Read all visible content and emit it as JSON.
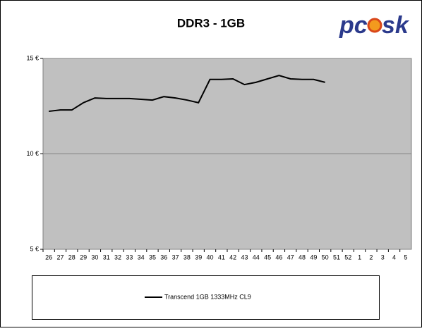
{
  "chart_data": {
    "type": "line",
    "title": "DDR3 - 1GB",
    "logo": {
      "left": "pc",
      "right": "sk"
    },
    "categories": [
      "26",
      "27",
      "28",
      "29",
      "30",
      "31",
      "32",
      "33",
      "34",
      "35",
      "36",
      "37",
      "38",
      "39",
      "40",
      "41",
      "42",
      "43",
      "44",
      "45",
      "46",
      "47",
      "48",
      "49",
      "50",
      "51",
      "52",
      "1",
      "2",
      "3",
      "4",
      "5"
    ],
    "series": [
      {
        "name": "Transcend 1GB 1333MHz CL9",
        "color": "#000000",
        "values": [
          12.23,
          12.3,
          12.3,
          12.68,
          12.93,
          12.9,
          12.9,
          12.9,
          12.86,
          12.82,
          13.0,
          12.93,
          12.82,
          12.68,
          13.9,
          13.9,
          13.93,
          13.63,
          13.75,
          13.93,
          14.11,
          13.93,
          13.9,
          13.9,
          13.75,
          null,
          null,
          null,
          null,
          null,
          null,
          null
        ]
      }
    ],
    "ylim": [
      5,
      15
    ],
    "yticks": [
      {
        "value": 5,
        "label": "5 €"
      },
      {
        "value": 10,
        "label": "10 €"
      },
      {
        "value": 15,
        "label": "15 €"
      }
    ],
    "grid": true,
    "plot_background": "#c0c0c0",
    "legend": "bottom"
  }
}
